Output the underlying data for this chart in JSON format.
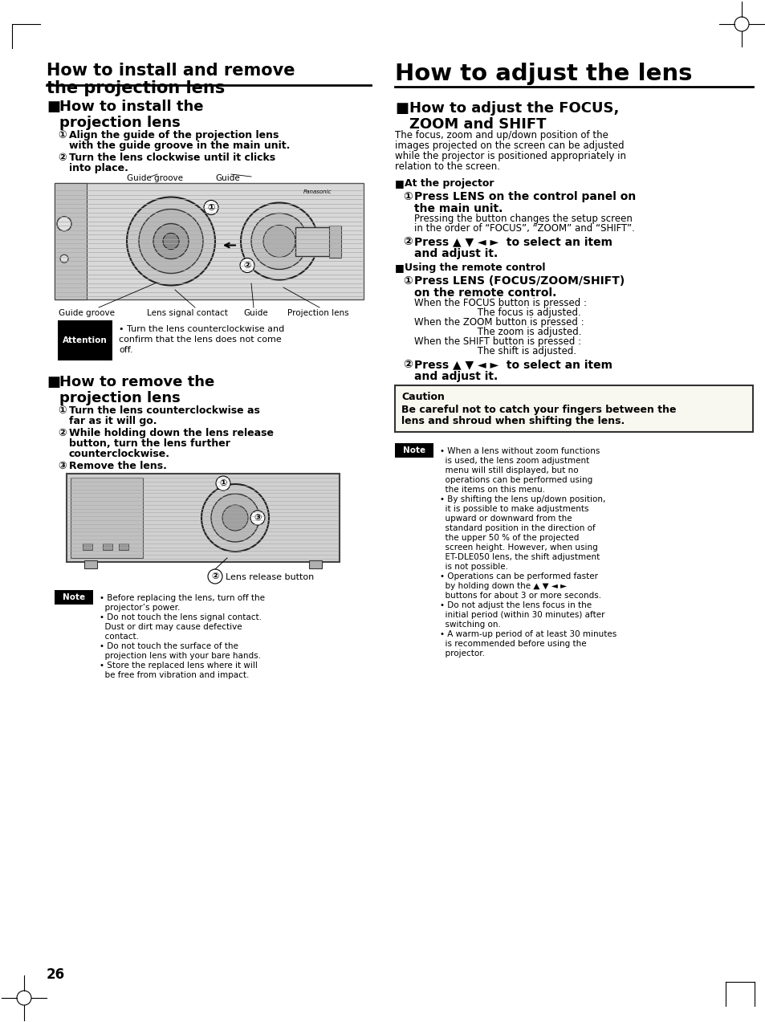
{
  "bg_color": "#ffffff",
  "page_number": "26",
  "left_title_line1": "How to install and remove",
  "left_title_line2": "the projection lens",
  "right_title": "How to adjust the lens",
  "sec1_title_line1": "How to install the",
  "sec1_title_line2": "projection lens",
  "sec1_step1_line1": "Align the guide of the projection lens",
  "sec1_step1_line2": "with the guide groove in the main unit.",
  "sec1_step2_line1": "Turn the lens clockwise until it clicks",
  "sec1_step2_line2": "into place.",
  "img1_top_labels": [
    "Guide groove",
    "Guide"
  ],
  "img1_bot_labels": [
    "Guide groove",
    "Lens signal contact",
    "Guide",
    "Projection lens"
  ],
  "attention_label": "Attention",
  "attention_text_line1": "• Turn the lens counterclockwise and",
  "attention_text_line2": "confirm that the lens does not come",
  "attention_text_line3": "off.",
  "sec2_title_line1": "How to remove the",
  "sec2_title_line2": "projection lens",
  "sec2_step1_line1": "Turn the lens counterclockwise as",
  "sec2_step1_line2": "far as it will go.",
  "sec2_step2_line1": "While holding down the lens release",
  "sec2_step2_line2": "button, turn the lens further",
  "sec2_step2_line3": "counterclockwise.",
  "sec2_step3": "Remove the lens.",
  "img2_label": "Lens release button",
  "left_note_label": "Note",
  "left_note_lines": [
    "• Before replacing the lens, turn off the",
    "  projector’s power.",
    "• Do not touch the lens signal contact.",
    "  Dust or dirt may cause defective",
    "  contact.",
    "• Do not touch the surface of the",
    "  projection lens with your bare hands.",
    "• Store the replaced lens where it will",
    "  be free from vibration and impact."
  ],
  "right_sec1_title_line1": "How to adjust the FOCUS,",
  "right_sec1_title_line2": "ZOOM and SHIFT",
  "right_intro_lines": [
    "The focus, zoom and up/down position of the",
    "images projected on the screen can be adjusted",
    "while the projector is positioned appropriately in",
    "relation to the screen."
  ],
  "at_proj_label": "■ At the projector",
  "at_proj_step1_line1": "Press LENS on the control panel on",
  "at_proj_step1_line2": "the main unit.",
  "at_proj_step1_desc1": "Pressing the button changes the setup screen",
  "at_proj_step1_desc2": "in the order of “FOCUS”, “ZOOM” and “SHIFT”.",
  "at_proj_step2_line1": "Press ▲ ▼ ◄ ►  to select an item",
  "at_proj_step2_line2": "and adjust it.",
  "remote_label": "■ Using the remote control",
  "remote_step1_line1": "Press LENS (FOCUS/ZOOM/SHIFT)",
  "remote_step1_line2": "on the remote control.",
  "remote_focus1": "When the FOCUS button is pressed :",
  "remote_focus2": "                     The focus is adjusted.",
  "remote_zoom1": "When the ZOOM button is pressed :",
  "remote_zoom2": "                     The zoom is adjusted.",
  "remote_shift1": "When the SHIFT button is pressed :",
  "remote_shift2": "                     The shift is adjusted.",
  "remote_step2_line1": "Press ▲ ▼ ◄ ►  to select an item",
  "remote_step2_line2": "and adjust it.",
  "caution_label": "Caution",
  "caution_line1": "Be careful not to catch your fingers between the",
  "caution_line2": "lens and shroud when shifting the lens.",
  "right_note_label": "Note",
  "right_note_lines": [
    "• When a lens without zoom functions",
    "  is used, the lens zoom adjustment",
    "  menu will still displayed, but no",
    "  operations can be performed using",
    "  the items on this menu.",
    "• By shifting the lens up/down position,",
    "  it is possible to make adjustments",
    "  upward or downward from the",
    "  standard position in the direction of",
    "  the upper 50 % of the projected",
    "  screen height. However, when using",
    "  ET-DLE050 lens, the shift adjustment",
    "  is not possible.",
    "• Operations can be performed faster",
    "  by holding down the ▲ ▼ ◄ ►",
    "  buttons for about 3 or more seconds.",
    "• Do not adjust the lens focus in the",
    "  initial period (within 30 minutes) after",
    "  switching on.",
    "• A warm-up period of at least 30 minutes",
    "  is recommended before using the",
    "  projector."
  ]
}
